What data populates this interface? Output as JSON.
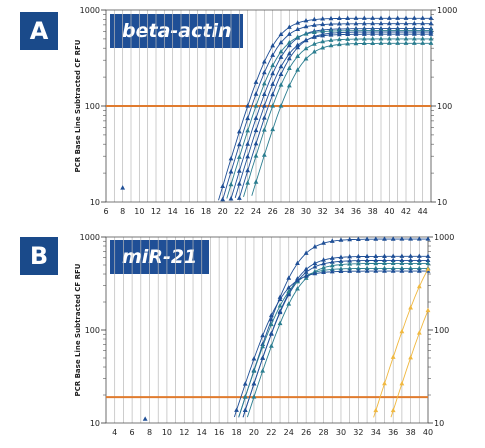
{
  "panels": [
    {
      "letter": "A",
      "gene": "beta-actin"
    },
    {
      "letter": "B",
      "gene": "miR-21"
    }
  ],
  "colors": {
    "threshold": "#e07b2e",
    "blue": "#1f4f96",
    "teal": "#2a7d8f",
    "yellow": "#f0b840",
    "grid": "#b8b8b8"
  },
  "chart_data": [
    {
      "type": "line",
      "title": "beta-actin",
      "ylabel": "PCR Base Line Subtracted CF RFU",
      "xlim": [
        6,
        45
      ],
      "ylim": [
        10,
        1000
      ],
      "yscale": "log",
      "xticks": [
        6,
        8,
        10,
        12,
        14,
        16,
        18,
        20,
        22,
        24,
        26,
        28,
        30,
        32,
        34,
        36,
        38,
        40,
        42,
        44
      ],
      "yticks": [
        10,
        100,
        1000
      ],
      "threshold": 100,
      "grid": "vertical",
      "isolated_point": {
        "x": 8,
        "y": 14
      },
      "series": [
        {
          "color": "blue",
          "ct": 23.0,
          "plateau": 820
        },
        {
          "color": "blue",
          "ct": 23.5,
          "plateau": 720
        },
        {
          "color": "blue",
          "ct": 24.5,
          "plateau": 640
        },
        {
          "color": "teal",
          "ct": 24.0,
          "plateau": 610
        },
        {
          "color": "blue",
          "ct": 25.5,
          "plateau": 590
        },
        {
          "color": "teal",
          "ct": 26.0,
          "plateau": 500
        },
        {
          "color": "teal",
          "ct": 27.0,
          "plateau": 450
        },
        {
          "color": "blue",
          "ct": 25.0,
          "plateau": 560
        }
      ]
    },
    {
      "type": "line",
      "title": "miR-21",
      "ylabel": "PCR Base Line Subtracted CF RFU",
      "xlim": [
        3,
        40
      ],
      "ylim": [
        10,
        1000
      ],
      "yscale": "log",
      "xticks": [
        4,
        6,
        8,
        10,
        12,
        14,
        16,
        18,
        20,
        22,
        24,
        26,
        28,
        30,
        32,
        34,
        36,
        38,
        40
      ],
      "yticks": [
        10,
        100,
        1000
      ],
      "threshold": 19,
      "grid": "vertical",
      "isolated_point": {
        "x": 7.5,
        "y": 11
      },
      "series": [
        {
          "color": "blue",
          "ct": 19.0,
          "plateau": 950
        },
        {
          "color": "blue",
          "ct": 19.5,
          "plateau": 620
        },
        {
          "color": "blue",
          "ct": 19.5,
          "plateau": 560
        },
        {
          "color": "teal",
          "ct": 20.0,
          "plateau": 520
        },
        {
          "color": "teal",
          "ct": 19.0,
          "plateau": 460
        },
        {
          "color": "blue",
          "ct": 18.5,
          "plateau": 430
        },
        {
          "color": "yellow",
          "ct": 34.5,
          "plateau": 1000
        },
        {
          "color": "yellow",
          "ct": 36.5,
          "plateau": 700
        }
      ]
    }
  ]
}
